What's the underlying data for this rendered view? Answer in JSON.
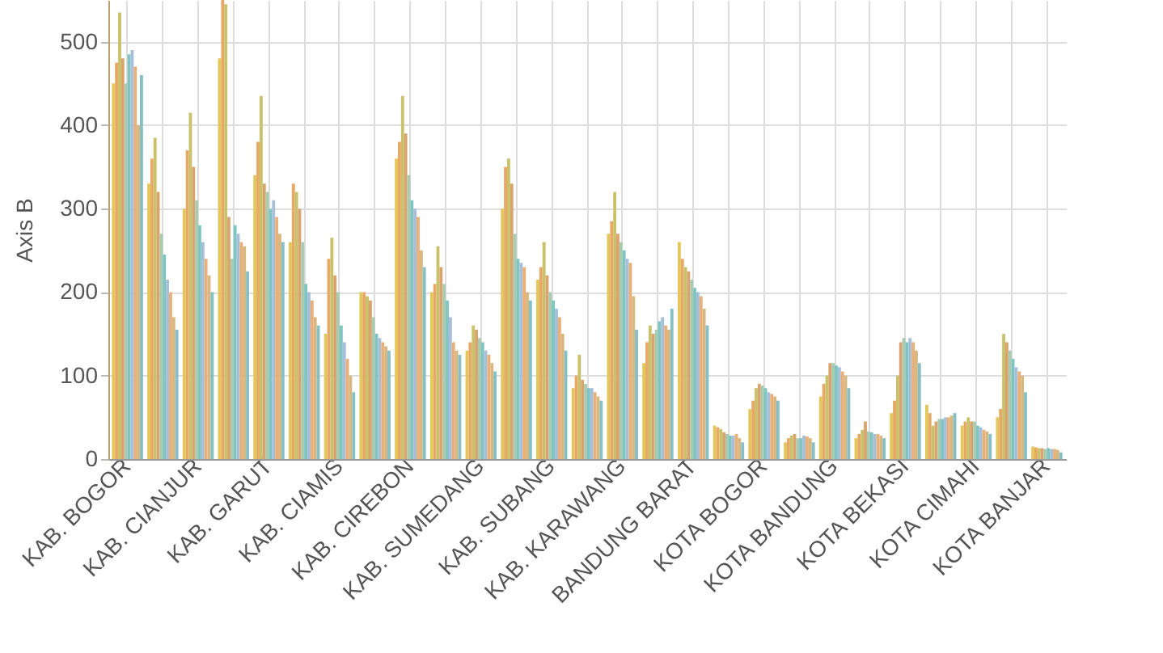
{
  "chart_data": {
    "type": "bar",
    "ylabel": "Axis B",
    "ylim": [
      0,
      550
    ],
    "yticks": [
      0,
      100,
      200,
      300,
      400,
      500
    ],
    "grid": true,
    "categories": [
      "KAB. BOGOR",
      null,
      "KAB. CIANJUR",
      null,
      "KAB. GARUT",
      null,
      "KAB. CIAMIS",
      null,
      "KAB. CIREBON",
      null,
      "KAB. SUMEDANG",
      null,
      "KAB. SUBANG",
      null,
      "KAB. KARAWANG",
      null,
      "BANDUNG BARAT",
      null,
      "KOTA BOGOR",
      null,
      "KOTA BANDUNG",
      null,
      "KOTA BEKASI",
      null,
      "KOTA CIMAHI",
      null,
      "KOTA BANJAR"
    ],
    "series": [
      {
        "color": "#e3c75a",
        "values": [
          450,
          330,
          300,
          480,
          340,
          260,
          150,
          200,
          360,
          200,
          130,
          300,
          215,
          85,
          270,
          115,
          260,
          40,
          60,
          20,
          75,
          25,
          55,
          65,
          40,
          50,
          15
        ]
      },
      {
        "color": "#e8a866",
        "values": [
          475,
          360,
          370,
          550,
          380,
          330,
          240,
          200,
          380,
          210,
          140,
          350,
          230,
          100,
          285,
          140,
          240,
          38,
          70,
          25,
          90,
          30,
          70,
          55,
          45,
          60,
          14
        ]
      },
      {
        "color": "#c9c26a",
        "values": [
          535,
          385,
          415,
          545,
          435,
          320,
          265,
          195,
          435,
          255,
          160,
          360,
          260,
          125,
          320,
          160,
          230,
          36,
          85,
          28,
          100,
          35,
          100,
          40,
          50,
          150,
          13
        ]
      },
      {
        "color": "#d9a46e",
        "values": [
          480,
          320,
          350,
          290,
          330,
          300,
          220,
          190,
          390,
          230,
          155,
          330,
          220,
          95,
          270,
          150,
          225,
          32,
          90,
          30,
          115,
          45,
          140,
          45,
          45,
          140,
          13
        ]
      },
      {
        "color": "#a9ccb0",
        "values": [
          450,
          270,
          310,
          240,
          320,
          260,
          200,
          170,
          340,
          210,
          145,
          270,
          200,
          90,
          260,
          155,
          215,
          30,
          88,
          25,
          115,
          33,
          145,
          48,
          45,
          130,
          12
        ]
      },
      {
        "color": "#7fc5c2",
        "values": [
          485,
          245,
          280,
          280,
          300,
          210,
          160,
          150,
          310,
          190,
          140,
          240,
          190,
          85,
          250,
          165,
          205,
          28,
          85,
          25,
          112,
          32,
          140,
          48,
          40,
          120,
          13
        ]
      },
      {
        "color": "#a7bfd9",
        "values": [
          490,
          215,
          260,
          270,
          310,
          200,
          140,
          145,
          300,
          170,
          130,
          235,
          180,
          85,
          240,
          170,
          200,
          28,
          80,
          28,
          110,
          30,
          145,
          50,
          38,
          110,
          12
        ]
      },
      {
        "color": "#eab07a",
        "values": [
          470,
          200,
          240,
          260,
          290,
          190,
          120,
          140,
          290,
          140,
          125,
          230,
          170,
          80,
          235,
          160,
          195,
          30,
          78,
          27,
          105,
          30,
          140,
          50,
          35,
          105,
          12
        ]
      },
      {
        "color": "#d8b880",
        "values": [
          400,
          170,
          220,
          255,
          270,
          170,
          100,
          135,
          250,
          130,
          115,
          200,
          150,
          75,
          195,
          155,
          180,
          25,
          75,
          25,
          100,
          28,
          130,
          52,
          33,
          100,
          11
        ]
      },
      {
        "color": "#86bfc4",
        "values": [
          460,
          155,
          200,
          225,
          260,
          160,
          80,
          130,
          230,
          125,
          105,
          190,
          130,
          70,
          155,
          180,
          160,
          20,
          70,
          20,
          85,
          25,
          115,
          55,
          30,
          80,
          8
        ]
      }
    ]
  }
}
